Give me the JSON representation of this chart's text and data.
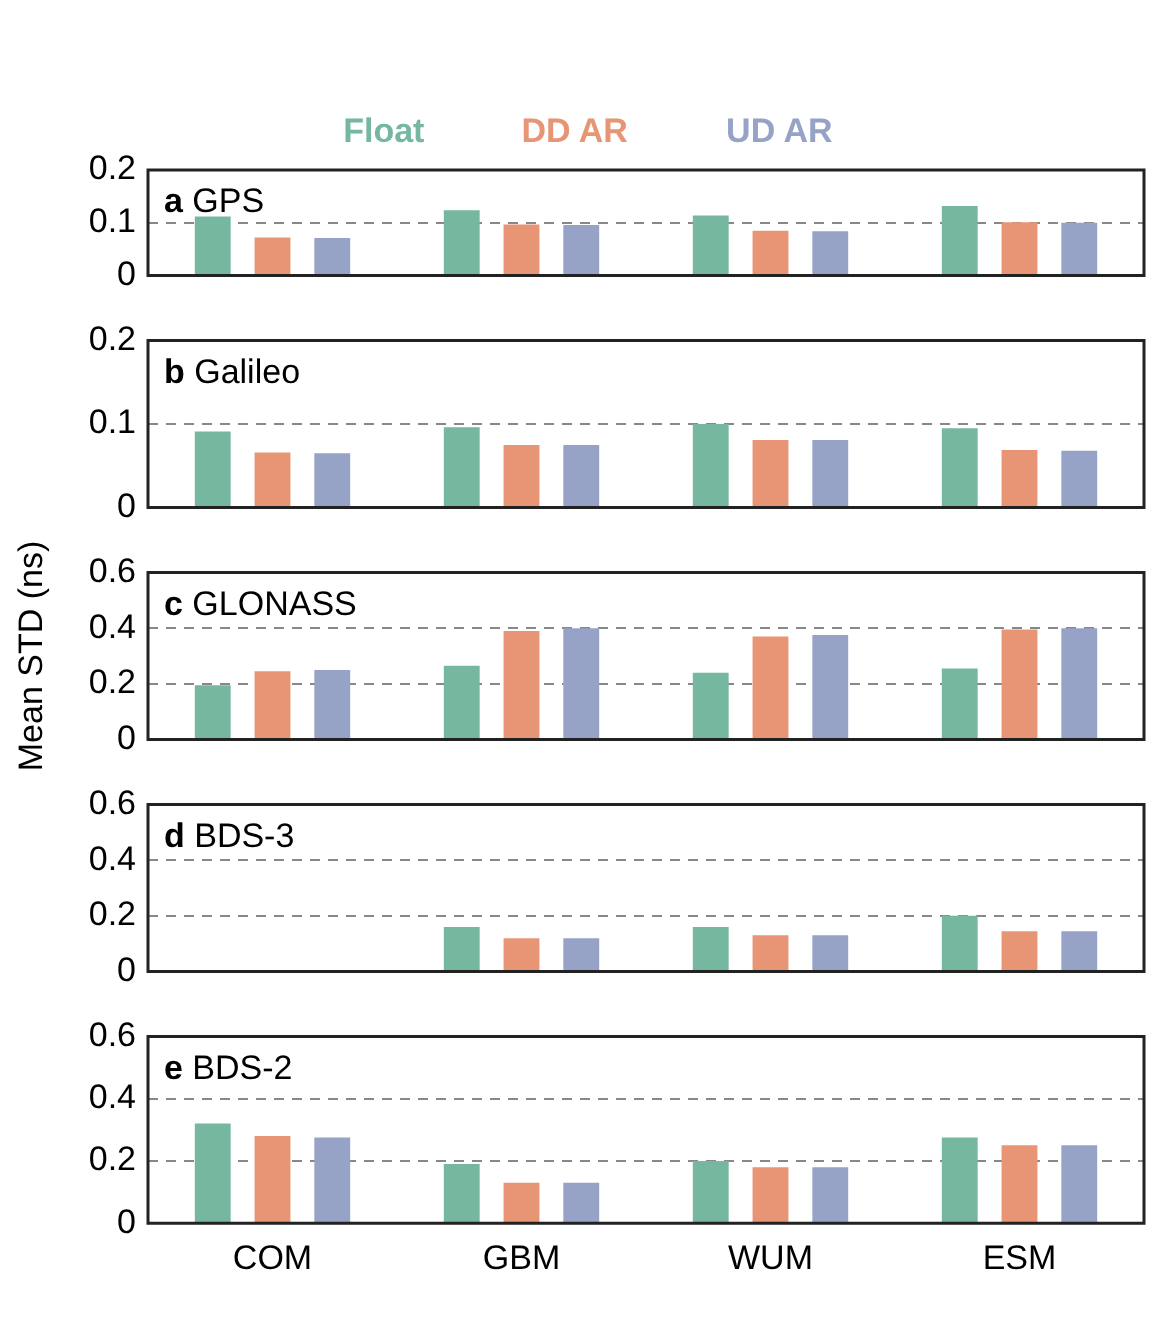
{
  "chart_data": [
    {
      "type": "bar",
      "title": "a GPS",
      "categories": [
        null,
        null,
        null,
        null
      ],
      "legend": "top",
      "grid": "y",
      "tick_labels": "y",
      "ylim": [
        0,
        0.2
      ],
      "yticks": [
        0,
        0.1,
        0.2
      ],
      "series": [
        {
          "name": "Float",
          "color": "#76b7a0",
          "values": [
            0.112,
            0.124,
            0.114,
            0.132
          ]
        },
        {
          "name": "DD AR",
          "color": "#e79574",
          "values": [
            0.072,
            0.097,
            0.085,
            0.101
          ]
        },
        {
          "name": "UD AR",
          "color": "#96a3c6",
          "values": [
            0.071,
            0.096,
            0.084,
            0.1
          ]
        }
      ]
    },
    {
      "type": "bar",
      "title": "b Galileo",
      "categories": [
        null,
        null,
        null,
        null
      ],
      "grid": "y",
      "tick_labels": "y",
      "ylim": [
        0,
        0.2
      ],
      "yticks": [
        0,
        0.1,
        0.2
      ],
      "series": [
        {
          "color": "#76b7a0",
          "values": [
            0.091,
            0.096,
            0.1,
            0.095
          ]
        },
        {
          "color": "#e79574",
          "values": [
            0.066,
            0.075,
            0.081,
            0.069
          ]
        },
        {
          "color": "#96a3c6",
          "values": [
            0.065,
            0.075,
            0.081,
            0.068
          ]
        }
      ]
    },
    {
      "type": "bar",
      "title": "c GLONASS",
      "ylabel": "Mean STD (ns)",
      "categories": [
        null,
        null,
        null,
        null
      ],
      "grid": "y",
      "tick_labels": "y",
      "ylim": [
        0,
        0.6
      ],
      "yticks": [
        0,
        0.2,
        0.4,
        0.6
      ],
      "series": [
        {
          "color": "#76b7a0",
          "values": [
            0.195,
            0.265,
            0.24,
            0.255
          ]
        },
        {
          "color": "#e79574",
          "values": [
            0.245,
            0.39,
            0.37,
            0.395
          ]
        },
        {
          "color": "#96a3c6",
          "values": [
            0.25,
            0.4,
            0.375,
            0.4
          ]
        }
      ]
    },
    {
      "type": "bar",
      "title": "d BDS-3",
      "categories": [
        null,
        null,
        null,
        null
      ],
      "grid": "y",
      "tick_labels": "y",
      "ylim": [
        0,
        0.6
      ],
      "yticks": [
        0,
        0.2,
        0.4,
        0.6
      ],
      "series": [
        {
          "color": "#76b7a0",
          "values": [
            null,
            0.16,
            0.16,
            0.2
          ]
        },
        {
          "color": "#e79574",
          "values": [
            null,
            0.12,
            0.13,
            0.145
          ]
        },
        {
          "color": "#96a3c6",
          "values": [
            null,
            0.12,
            0.13,
            0.145
          ]
        }
      ]
    },
    {
      "type": "bar",
      "title": "e BDS-2",
      "categories": [
        "COM",
        "GBM",
        "WUM",
        "ESM"
      ],
      "grid": "y",
      "ylim": [
        0,
        0.6
      ],
      "yticks": [
        0,
        0.2,
        0.4,
        0.6
      ],
      "series": [
        {
          "color": "#76b7a0",
          "values": [
            0.32,
            0.19,
            0.2,
            0.275
          ]
        },
        {
          "color": "#e79574",
          "values": [
            0.28,
            0.13,
            0.18,
            0.25
          ]
        },
        {
          "color": "#96a3c6",
          "values": [
            0.275,
            0.13,
            0.18,
            0.25
          ]
        }
      ]
    }
  ]
}
